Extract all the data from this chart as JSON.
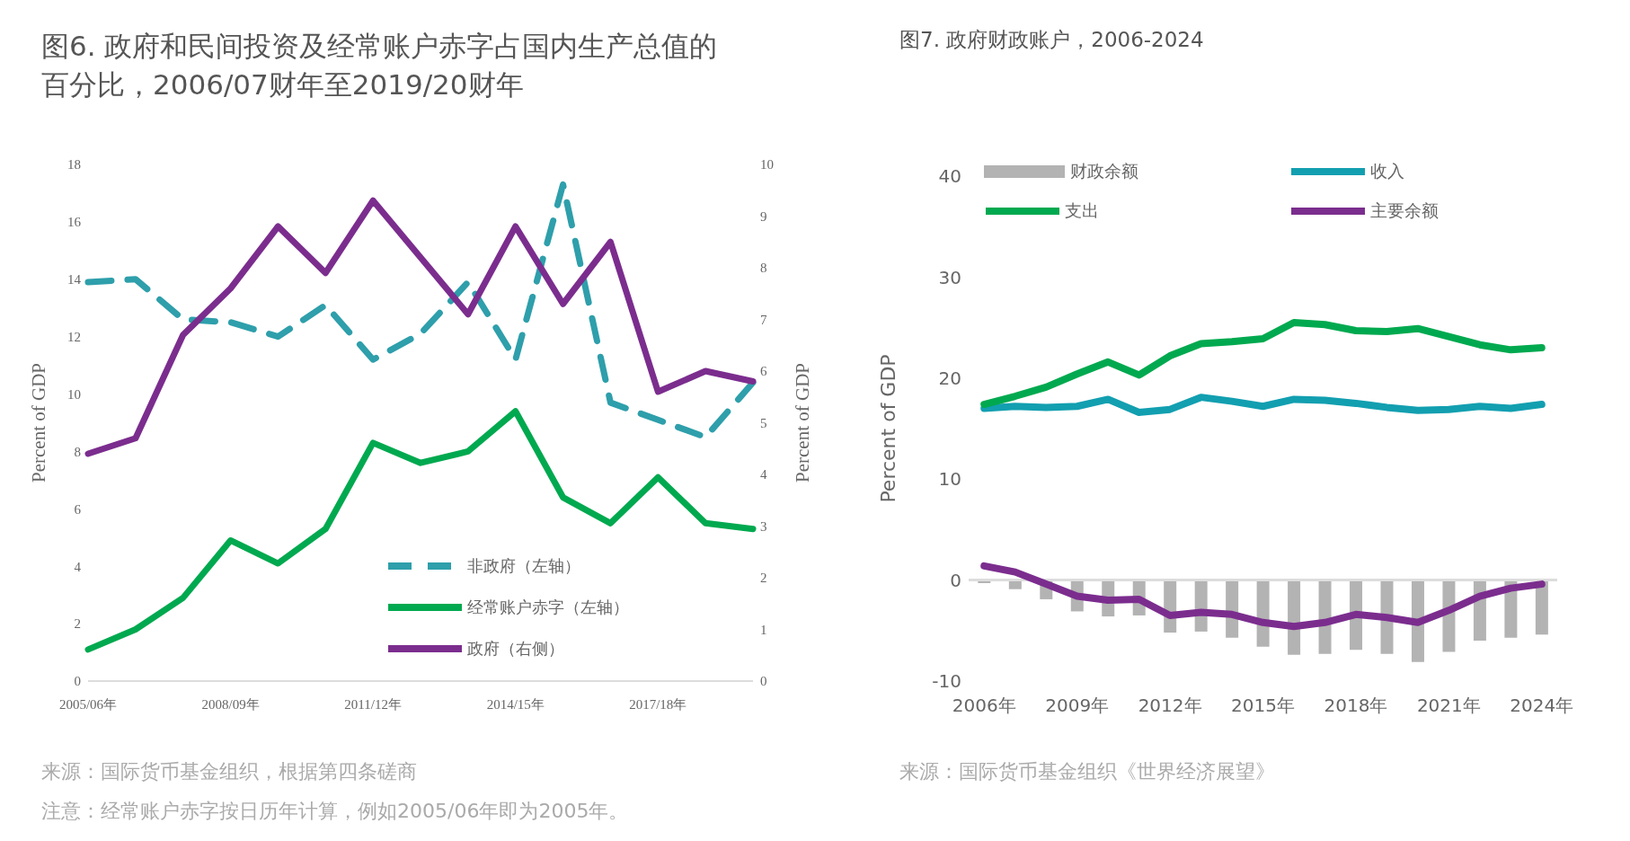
{
  "chart_data": [
    {
      "type": "line",
      "title": "图6. 政府和民间投资及经常账户赤字占国内生产总值的百分比，2006/07财年至2019/20财年",
      "ylabel": "Percent of GDP",
      "y2label": "Percent of GDP",
      "categories": [
        "2005/06年",
        null,
        null,
        "2008/09年",
        null,
        null,
        "2011/12年",
        null,
        null,
        "2014/15年",
        null,
        null,
        "2017/18年",
        null,
        null
      ],
      "series": [
        {
          "name": "非政府（左轴）",
          "color": "#2e9fab",
          "line_style": "dashed",
          "values": [
            13.9,
            14.0,
            12.6,
            12.5,
            12.0,
            13.1,
            11.2,
            12.1,
            13.9,
            11.2,
            17.3,
            9.7,
            9.1,
            8.5,
            10.4
          ]
        },
        {
          "name": "经常账户赤字（左轴）",
          "color": "#00a94f",
          "values": [
            1.1,
            1.8,
            2.9,
            4.9,
            4.1,
            5.3,
            8.3,
            7.6,
            8.0,
            9.4,
            6.4,
            5.5,
            7.1,
            5.5,
            5.3
          ]
        },
        {
          "name": "政府（右侧）",
          "color": "#7b2d8e",
          "axis": "y2",
          "values": [
            4.4,
            4.7,
            6.7,
            7.6,
            8.8,
            7.9,
            9.3,
            8.2,
            7.1,
            8.8,
            7.3,
            8.5,
            5.6,
            6.0,
            5.8
          ]
        }
      ],
      "ylim": [
        0,
        18
      ],
      "yticks": [
        0,
        2,
        4,
        6,
        8,
        10,
        12,
        14,
        16,
        18
      ],
      "y2lim": [
        0,
        10
      ],
      "y2ticks": [
        0,
        1,
        2,
        3,
        4,
        5,
        6,
        7,
        8,
        9,
        10
      ],
      "legend": "bottom right",
      "annotations": [
        "来源：国际货币基金组织，根据第四条磋商",
        "注意：经常账户赤字按日历年计算，例如2005/06年即为2005年。"
      ]
    },
    {
      "type": "bar",
      "title": "图7. 政府财政账户，2006-2024",
      "ylabel": "Percent of GDP",
      "categories": [
        "2006年",
        null,
        null,
        "2009年",
        null,
        null,
        "2012年",
        null,
        null,
        "2015年",
        null,
        null,
        "2018年",
        null,
        null,
        "2021年",
        null,
        null,
        "2024年"
      ],
      "series": [
        {
          "name": "财政余额",
          "color": "#b3b3b3",
          "values": [
            -0.3,
            -0.9,
            -1.9,
            -3.1,
            -3.6,
            -3.5,
            -5.2,
            -5.1,
            -5.7,
            -6.6,
            -7.4,
            -7.3,
            -6.9,
            -7.3,
            -8.1,
            -7.1,
            -6.0,
            -5.7,
            -5.4
          ]
        },
        {
          "name": "收入",
          "type": "line",
          "color": "#129fb0",
          "values": [
            17.0,
            17.2,
            17.1,
            17.2,
            17.9,
            16.6,
            16.9,
            18.1,
            17.7,
            17.2,
            17.9,
            17.8,
            17.5,
            17.1,
            16.8,
            16.9,
            17.2,
            17.0,
            17.4
          ]
        },
        {
          "name": "支出",
          "type": "line",
          "color": "#00a94f",
          "values": [
            17.4,
            18.2,
            19.1,
            20.4,
            21.6,
            20.3,
            22.2,
            23.4,
            23.6,
            23.9,
            25.5,
            25.3,
            24.7,
            24.6,
            24.9,
            24.1,
            23.3,
            22.8,
            23.0
          ]
        },
        {
          "name": "主要余额",
          "type": "line",
          "color": "#7b2d8e",
          "values": [
            1.4,
            0.8,
            -0.4,
            -1.6,
            -2.0,
            -1.9,
            -3.5,
            -3.2,
            -3.4,
            -4.2,
            -4.6,
            -4.2,
            -3.4,
            -3.7,
            -4.2,
            -3.0,
            -1.6,
            -0.8,
            -0.4
          ]
        }
      ],
      "ylim": [
        -10,
        40
      ],
      "yticks": [
        -10,
        0,
        10,
        20,
        30,
        40
      ],
      "legend": "top",
      "annotations": [
        "来源：国际货币基金组织《世界经济展望》"
      ]
    }
  ]
}
